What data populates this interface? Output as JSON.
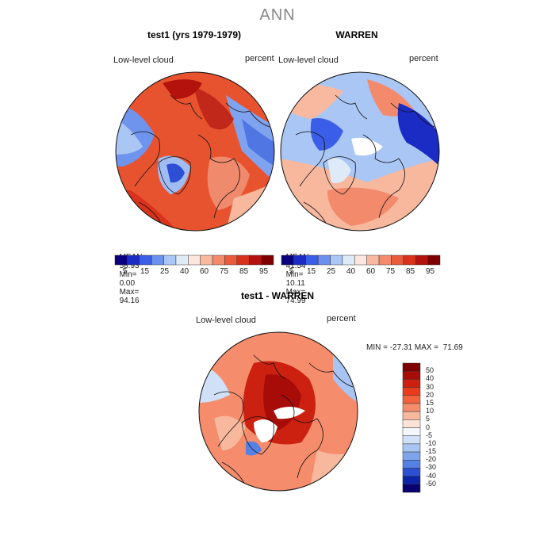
{
  "title": "ANN",
  "panels": [
    {
      "title": "test1 (yrs 1979-1979)",
      "field_label": "Low-level cloud",
      "units": "percent",
      "mean_label": "MEAN=",
      "mean": "58.93",
      "min_label": "Min=",
      "min": "0.00",
      "max_label": "Max=",
      "max": "94.16"
    },
    {
      "title": "WARREN",
      "field_label": "Low-level cloud",
      "units": "percent",
      "mean_label": "MEAN=",
      "mean": "41.54",
      "min_label": "Min=",
      "min": "10.11",
      "max_label": "Max=",
      "max": "74.99"
    },
    {
      "title": "test1 - WARREN",
      "field_label": "Low-level cloud",
      "units": "percent",
      "range_text": "MIN = -27.31 MAX =  71.69"
    }
  ],
  "colorbar_abs": {
    "labels": [
      "5",
      "15",
      "25",
      "40",
      "60",
      "75",
      "85",
      "95"
    ],
    "colors": [
      "#08007f",
      "#1a2cc4",
      "#3a5ee8",
      "#6c90ee",
      "#a9c6f4",
      "#dfeaf9",
      "#fde6dd",
      "#f9b9a1",
      "#f48a6c",
      "#ea5a3c",
      "#d9321c",
      "#b3130c",
      "#7e0000"
    ]
  },
  "colorbar_diff": {
    "labels": [
      "50",
      "40",
      "30",
      "20",
      "15",
      "10",
      "5",
      "0",
      "-5",
      "-10",
      "-15",
      "-20",
      "-30",
      "-40",
      "-50"
    ],
    "colors": [
      "#7e0000",
      "#a80c08",
      "#cc2010",
      "#e83c1c",
      "#f2623c",
      "#f58c6c",
      "#f7b89e",
      "#fde2d8",
      "#f4f7fc",
      "#cfe0f7",
      "#a8c4f2",
      "#7ea4ec",
      "#5580e4",
      "#2c50d4",
      "#0d24a8",
      "#08006e"
    ]
  }
}
